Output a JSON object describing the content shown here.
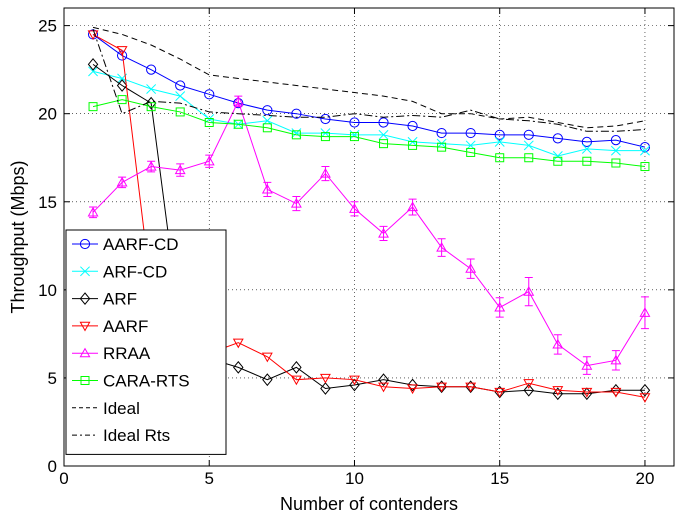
{
  "chart_data": {
    "type": "line",
    "xlabel": "Number of contenders",
    "ylabel": "Throughput (Mbps)",
    "xlim": [
      0,
      21
    ],
    "ylim": [
      0,
      26
    ],
    "xticks": [
      0,
      5,
      10,
      15,
      20
    ],
    "yticks": [
      0,
      5,
      10,
      15,
      20,
      25
    ],
    "grid": true,
    "legend_position": "left",
    "series": [
      {
        "name": "AARF-CD",
        "color": "#0000ff",
        "marker": "circle",
        "dash": "solid",
        "x": [
          1,
          2,
          3,
          4,
          5,
          6,
          7,
          8,
          9,
          10,
          11,
          12,
          13,
          14,
          15,
          16,
          17,
          18,
          19,
          20
        ],
        "y": [
          24.5,
          23.3,
          22.5,
          21.6,
          21.1,
          20.6,
          20.2,
          20.0,
          19.7,
          19.5,
          19.5,
          19.3,
          18.9,
          18.9,
          18.8,
          18.8,
          18.6,
          18.4,
          18.5,
          18.1
        ]
      },
      {
        "name": "ARF-CD",
        "color": "#00ffff",
        "marker": "x",
        "dash": "solid",
        "x": [
          1,
          2,
          3,
          4,
          5,
          6,
          7,
          8,
          9,
          10,
          11,
          12,
          13,
          14,
          15,
          16,
          17,
          18,
          19,
          20
        ],
        "y": [
          22.4,
          22.0,
          21.4,
          21.0,
          19.7,
          19.4,
          19.6,
          18.9,
          18.9,
          18.8,
          18.8,
          18.4,
          18.3,
          18.2,
          18.4,
          18.2,
          17.6,
          18.0,
          17.9,
          17.9
        ]
      },
      {
        "name": "ARF",
        "color": "#000000",
        "marker": "diamond",
        "dash": "solid",
        "x": [
          1,
          2,
          3,
          4,
          5,
          6,
          7,
          8,
          9,
          10,
          11,
          12,
          13,
          14,
          15,
          16,
          17,
          18,
          19,
          20
        ],
        "y": [
          22.8,
          21.6,
          20.6,
          8.0,
          6.1,
          5.6,
          4.9,
          5.6,
          4.4,
          4.6,
          4.9,
          4.6,
          4.5,
          4.5,
          4.2,
          4.3,
          4.1,
          4.1,
          4.3,
          4.3
        ]
      },
      {
        "name": "AARF",
        "color": "#ff0000",
        "marker": "triangle-down",
        "dash": "solid",
        "x": [
          1,
          2,
          3,
          4,
          5,
          6,
          7,
          8,
          9,
          10,
          11,
          12,
          13,
          14,
          15,
          16,
          17,
          18,
          19,
          20
        ],
        "y": [
          24.5,
          23.6,
          10.0,
          6.7,
          6.4,
          7.0,
          6.2,
          4.9,
          5.0,
          4.9,
          4.5,
          4.4,
          4.5,
          4.5,
          4.2,
          4.7,
          4.3,
          4.2,
          4.2,
          3.9
        ]
      },
      {
        "name": "RRAA",
        "color": "#ff00ff",
        "marker": "triangle-up",
        "dash": "solid",
        "error_bars": true,
        "x": [
          1,
          2,
          3,
          4,
          5,
          6,
          7,
          8,
          9,
          10,
          11,
          12,
          13,
          14,
          15,
          16,
          17,
          18,
          19,
          20
        ],
        "y": [
          14.4,
          16.1,
          17.0,
          16.8,
          17.3,
          20.7,
          15.7,
          14.9,
          16.6,
          14.6,
          13.2,
          14.7,
          12.4,
          11.2,
          9.0,
          9.9,
          6.9,
          5.7,
          6.0,
          8.7
        ],
        "err": [
          0.3,
          0.3,
          0.3,
          0.35,
          0.35,
          0.3,
          0.4,
          0.4,
          0.4,
          0.4,
          0.4,
          0.45,
          0.5,
          0.55,
          0.55,
          0.8,
          0.55,
          0.5,
          0.55,
          0.9
        ]
      },
      {
        "name": "CARA-RTS",
        "color": "#00ff00",
        "marker": "square",
        "dash": "solid",
        "x": [
          1,
          2,
          3,
          4,
          5,
          6,
          7,
          8,
          9,
          10,
          11,
          12,
          13,
          14,
          15,
          16,
          17,
          18,
          19,
          20
        ],
        "y": [
          20.4,
          20.8,
          20.4,
          20.1,
          19.5,
          19.4,
          19.2,
          18.8,
          18.7,
          18.7,
          18.3,
          18.2,
          18.1,
          17.8,
          17.5,
          17.5,
          17.3,
          17.3,
          17.2,
          17.0
        ]
      },
      {
        "name": "Ideal",
        "color": "#000000",
        "marker": "none",
        "dash": "dashed",
        "x": [
          1,
          2,
          3,
          4,
          5,
          6,
          7,
          8,
          9,
          10,
          11,
          12,
          13,
          14,
          15,
          16,
          17,
          18,
          19,
          20
        ],
        "y": [
          24.9,
          24.5,
          23.9,
          23.1,
          22.2,
          22.0,
          21.8,
          21.6,
          21.4,
          21.2,
          21.0,
          20.7,
          20.0,
          20.0,
          19.7,
          19.8,
          19.5,
          19.2,
          19.3,
          19.6
        ]
      },
      {
        "name": "Ideal Rts",
        "color": "#000000",
        "marker": "none",
        "dash": "dashdot",
        "x": [
          1,
          2,
          3,
          4,
          5,
          6,
          7,
          8,
          9,
          10,
          11,
          12,
          13,
          14,
          15,
          16,
          17,
          18,
          19,
          20
        ],
        "y": [
          24.8,
          20.0,
          20.7,
          20.6,
          20.1,
          20.0,
          19.9,
          19.8,
          19.8,
          20.0,
          19.8,
          19.9,
          19.8,
          20.2,
          19.7,
          19.6,
          19.4,
          19.0,
          19.0,
          19.1
        ]
      }
    ]
  }
}
